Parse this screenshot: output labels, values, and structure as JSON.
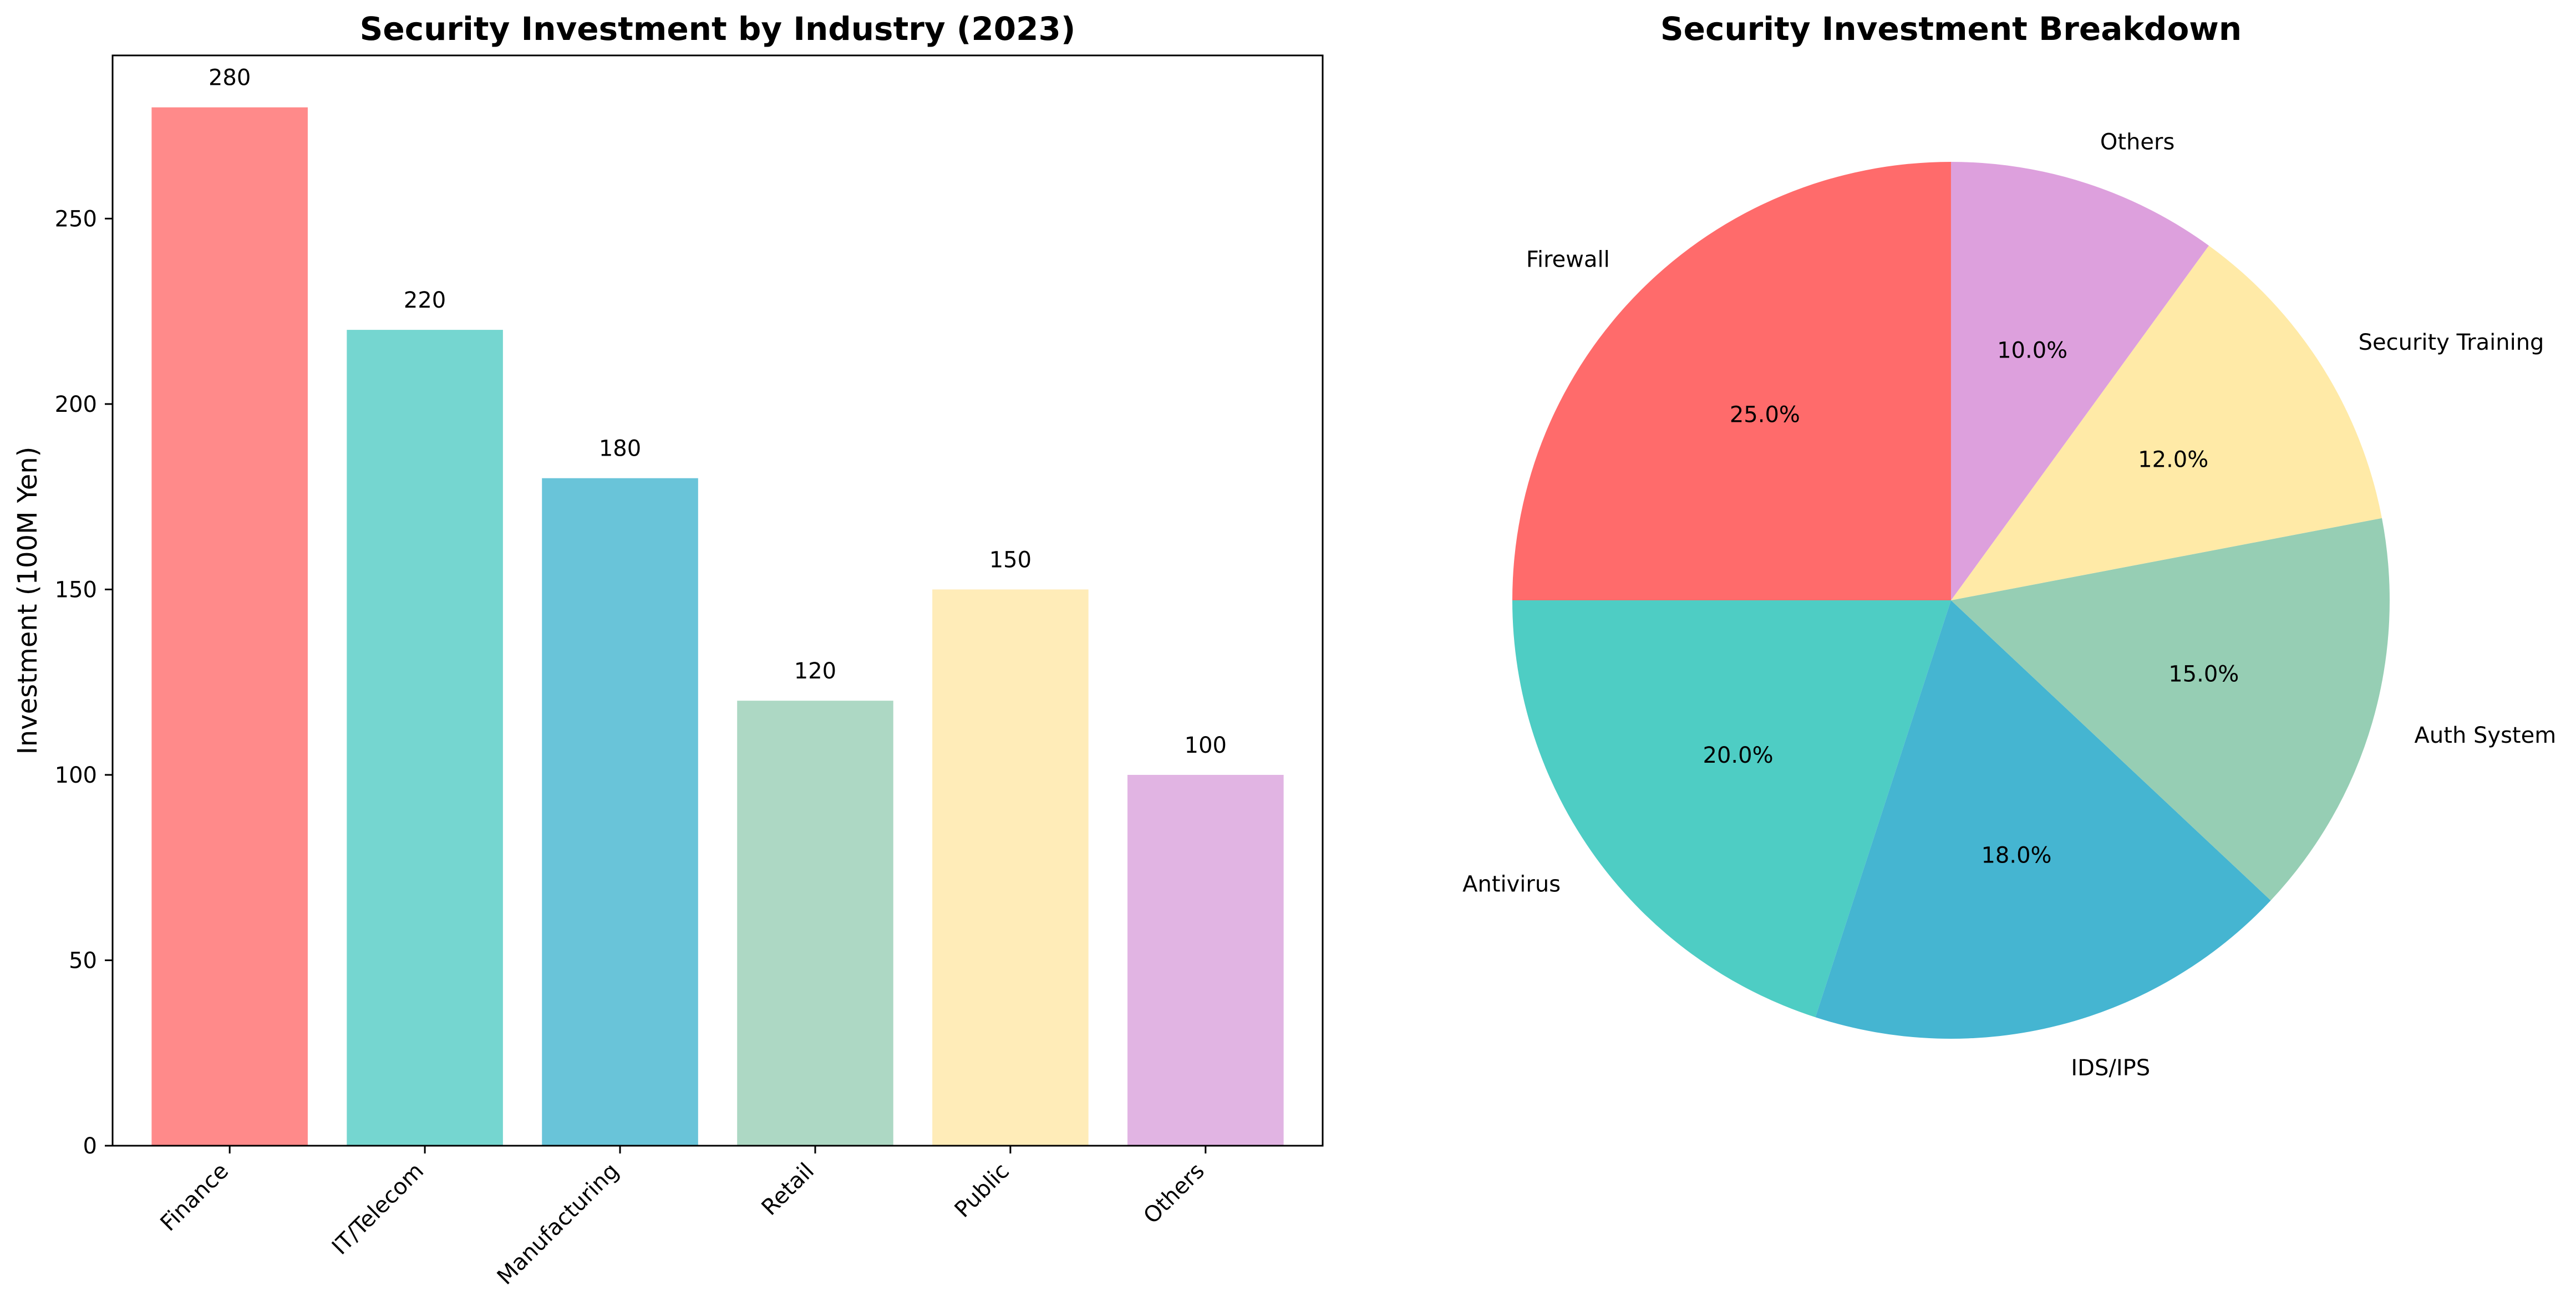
{
  "chart_data": [
    {
      "type": "bar",
      "title": "Security Investment by Industry (2023)",
      "xlabel": "",
      "ylabel": "Investment (100M Yen)",
      "categories": [
        "Finance",
        "IT/Telecom",
        "Manufacturing",
        "Retail",
        "Public",
        "Others"
      ],
      "values": [
        280,
        220,
        180,
        120,
        150,
        100
      ],
      "value_labels": [
        "280",
        "220",
        "180",
        "120",
        "150",
        "100"
      ],
      "colors": [
        "#FF8A8A",
        "#75D6D0",
        "#69C4D9",
        "#ADD8C4",
        "#FFECB8",
        "#E1B4E3"
      ],
      "ylim": [
        0,
        294
      ],
      "yticks": [
        0,
        50,
        100,
        150,
        200,
        250
      ],
      "ytick_labels": [
        "0",
        "50",
        "100",
        "150",
        "200",
        "250"
      ],
      "x_tick_rotation_deg": 45,
      "grid": false,
      "legend": "none"
    },
    {
      "type": "pie",
      "title": "Security Investment Breakdown",
      "labels": [
        "Firewall",
        "Antivirus",
        "IDS/IPS",
        "Auth System",
        "Security Training",
        "Others"
      ],
      "values": [
        25,
        20,
        18,
        15,
        12,
        10
      ],
      "pct_labels": [
        "25.0%",
        "20.0%",
        "18.0%",
        "15.0%",
        "12.0%",
        "10.0%"
      ],
      "colors": [
        "#FF6B6B",
        "#4ECDC4",
        "#45B5D1",
        "#96CEB4",
        "#FFEAA7",
        "#DDA0DD"
      ],
      "start_angle_deg": 90,
      "direction": "counterclockwise",
      "legend": "none"
    }
  ]
}
